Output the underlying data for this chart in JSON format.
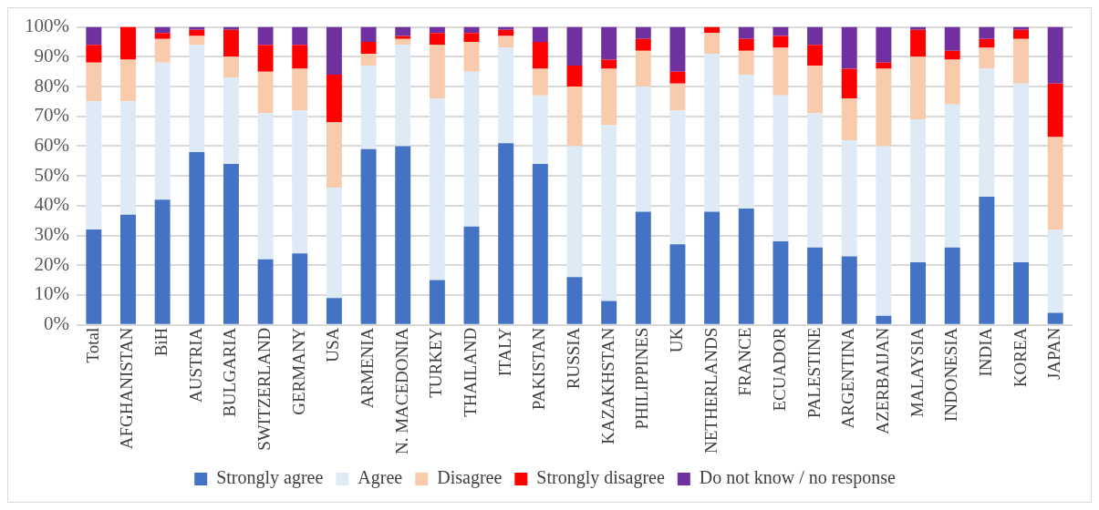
{
  "chart_data": {
    "type": "bar",
    "stacked": true,
    "categories": [
      "Total",
      "AFGHANISTAN",
      "BiH",
      "AUSTRIA",
      "BULGARIA",
      "SWITZERLAND",
      "GERMANY",
      "USA",
      "ARMENIA",
      "N. MACEDONIA",
      "TURKEY",
      "THAILAND",
      "ITALY",
      "PAKISTAN",
      "RUSSIA",
      "KAZAKHSTAN",
      "PHILIPPINES",
      "UK",
      "NETHERLANDS",
      "FRANCE",
      "ECUADOR",
      "PALESTINE",
      "ARGENTINA",
      "AZERBAIJAN",
      "MALAYSIA",
      "INDONESIA",
      "INDIA",
      "KOREA",
      "JAPAN"
    ],
    "series": [
      {
        "name": "Strongly agree",
        "color": "#4472c4",
        "values": [
          32,
          37,
          42,
          58,
          54,
          22,
          24,
          9,
          59,
          60,
          15,
          33,
          61,
          54,
          16,
          8,
          38,
          27,
          38,
          39,
          28,
          26,
          23,
          3,
          21,
          26,
          43,
          21,
          4
        ]
      },
      {
        "name": "Agree",
        "color": "#deebf7",
        "values": [
          43,
          38,
          46,
          36,
          29,
          49,
          48,
          37,
          28,
          34,
          61,
          52,
          32,
          23,
          44,
          59,
          42,
          45,
          53,
          45,
          49,
          45,
          39,
          57,
          48,
          48,
          43,
          60,
          28
        ]
      },
      {
        "name": "Disagree",
        "color": "#f8cbad",
        "values": [
          13,
          14,
          8,
          3,
          7,
          14,
          14,
          22,
          4,
          2,
          18,
          10,
          4,
          9,
          20,
          19,
          12,
          9,
          7,
          8,
          16,
          16,
          14,
          26,
          21,
          15,
          7,
          15,
          31
        ]
      },
      {
        "name": "Strongly disagree",
        "color": "#ff0000",
        "values": [
          6,
          11,
          2,
          2,
          9,
          9,
          8,
          16,
          4,
          1,
          4,
          3,
          2,
          9,
          7,
          3,
          4,
          4,
          2,
          4,
          4,
          7,
          10,
          2,
          9,
          3,
          3,
          3,
          18
        ]
      },
      {
        "name": "Do not know / no response",
        "color": "#7030a0",
        "values": [
          6,
          0,
          2,
          1,
          1,
          6,
          6,
          16,
          5,
          3,
          2,
          2,
          1,
          5,
          13,
          11,
          4,
          15,
          0,
          4,
          3,
          6,
          14,
          12,
          1,
          8,
          4,
          1,
          19
        ]
      }
    ],
    "ylim": [
      0,
      100
    ],
    "yticks": [
      {
        "value": 0,
        "label": "0%"
      },
      {
        "value": 10,
        "label": "10%"
      },
      {
        "value": 20,
        "label": "20%"
      },
      {
        "value": 30,
        "label": "30%"
      },
      {
        "value": 40,
        "label": "40%"
      },
      {
        "value": 50,
        "label": "50%"
      },
      {
        "value": 60,
        "label": "60%"
      },
      {
        "value": 70,
        "label": "70%"
      },
      {
        "value": 80,
        "label": "80%"
      },
      {
        "value": 90,
        "label": "90%"
      },
      {
        "value": 100,
        "label": "100%"
      }
    ],
    "grid": "y",
    "legend": "bottom"
  }
}
